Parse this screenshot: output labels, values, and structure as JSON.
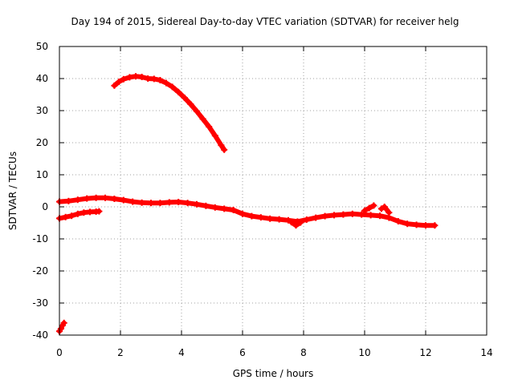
{
  "chart_data": {
    "type": "scatter",
    "title": "Day 194 of 2015, Sidereal Day-to-day VTEC variation (SDTVAR) for receiver helg",
    "xlabel": "GPS time / hours",
    "ylabel": "SDTVAR / TECUs",
    "xlim": [
      0,
      14
    ],
    "ylim": [
      -40,
      50
    ],
    "xticks": [
      0,
      2,
      4,
      6,
      8,
      10,
      12,
      14
    ],
    "yticks": [
      -40,
      -30,
      -20,
      -10,
      0,
      10,
      20,
      30,
      40,
      50
    ],
    "grid": true,
    "legend": "none",
    "series_color": "#ff0000",
    "series": [
      {
        "name": "upper-arc",
        "x": [
          1.8,
          1.95,
          2.1,
          2.3,
          2.5,
          2.7,
          2.9,
          3.1,
          3.3,
          3.5,
          3.7,
          3.9,
          4.1,
          4.3,
          4.5,
          4.7,
          4.9,
          5.1,
          5.3,
          5.4
        ],
        "y": [
          37.8,
          39.0,
          39.8,
          40.4,
          40.7,
          40.5,
          40.0,
          39.9,
          39.5,
          38.6,
          37.4,
          35.8,
          34.0,
          32.0,
          29.8,
          27.4,
          25.0,
          22.2,
          19.2,
          17.8
        ]
      },
      {
        "name": "main-band",
        "x": [
          0.0,
          0.3,
          0.6,
          0.9,
          1.2,
          1.5,
          1.8,
          2.1,
          2.4,
          2.7,
          3.0,
          3.3,
          3.6,
          3.9,
          4.2,
          4.5,
          4.8,
          5.1,
          5.4,
          5.7,
          6.0,
          6.3,
          6.6,
          6.9,
          7.2,
          7.5,
          7.8,
          8.1,
          8.4,
          8.7,
          9.0,
          9.3,
          9.6,
          9.9,
          10.2,
          10.5,
          10.8,
          11.1,
          11.4,
          11.7,
          12.0,
          12.3
        ],
        "y": [
          1.6,
          1.8,
          2.2,
          2.6,
          2.8,
          2.8,
          2.5,
          2.1,
          1.6,
          1.3,
          1.2,
          1.2,
          1.4,
          1.5,
          1.2,
          0.8,
          0.3,
          -0.2,
          -0.6,
          -1.0,
          -2.2,
          -2.9,
          -3.3,
          -3.7,
          -3.9,
          -4.2,
          -4.6,
          -4.0,
          -3.4,
          -2.9,
          -2.6,
          -2.4,
          -2.2,
          -2.4,
          -2.6,
          -2.8,
          -3.4,
          -4.5,
          -5.3,
          -5.6,
          -5.8,
          -5.8
        ]
      },
      {
        "name": "lower-early-segment",
        "x": [
          0.0,
          0.2,
          0.4,
          0.6,
          0.8,
          1.0,
          1.2,
          1.3
        ],
        "y": [
          -3.6,
          -3.2,
          -2.8,
          -2.2,
          -1.8,
          -1.6,
          -1.5,
          -1.4
        ]
      },
      {
        "name": "day-start-spike",
        "x": [
          0.0,
          0.05,
          0.1,
          0.15
        ],
        "y": [
          -38.8,
          -38.0,
          -37.0,
          -36.2
        ]
      },
      {
        "name": "jump-near-10",
        "x": [
          10.0,
          10.15,
          10.3
        ],
        "y": [
          -1.2,
          -0.4,
          0.4
        ]
      },
      {
        "name": "jump-near-10-6",
        "x": [
          10.55,
          10.65,
          10.8
        ],
        "y": [
          -0.6,
          0.0,
          -1.8
        ]
      },
      {
        "name": "dip-near-7-8",
        "x": [
          7.6,
          7.75,
          7.9
        ],
        "y": [
          -4.8,
          -5.8,
          -4.9
        ]
      }
    ]
  }
}
